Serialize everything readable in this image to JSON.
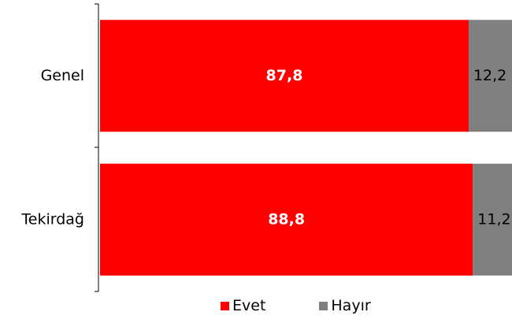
{
  "chart_data": {
    "type": "bar",
    "orientation": "horizontal",
    "stacked": true,
    "categories": [
      "Genel",
      "Tekirdağ"
    ],
    "series": [
      {
        "name": "Evet",
        "color": "#ff0000",
        "values": [
          87.8,
          88.8
        ],
        "labels": [
          "87,8",
          "88,8"
        ]
      },
      {
        "name": "Hayır",
        "color": "#808080",
        "values": [
          12.2,
          11.2
        ],
        "labels": [
          "12,2",
          "11,2"
        ]
      }
    ],
    "xlim": [
      0,
      100
    ],
    "grid": false,
    "legend_position": "bottom"
  }
}
